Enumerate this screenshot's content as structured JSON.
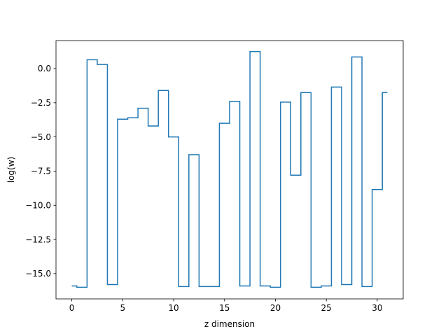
{
  "chart_data": {
    "type": "line",
    "drawstyle": "steps-mid",
    "xlabel": "z dimension",
    "ylabel": "log(w)",
    "xlim": [
      -1.55,
      32.55
    ],
    "ylim": [
      -16.85,
      2.05
    ],
    "grid": false,
    "xticks": [
      0,
      5,
      10,
      15,
      20,
      25,
      30
    ],
    "xtick_labels": [
      "0",
      "5",
      "10",
      "15",
      "20",
      "25",
      "30"
    ],
    "yticks": [
      0.0,
      -2.5,
      -5.0,
      -7.5,
      -10.0,
      -12.5,
      -15.0
    ],
    "ytick_labels": [
      "0.0",
      "−2.5",
      "−5.0",
      "−7.5",
      "−10.0",
      "−12.5",
      "−15.0"
    ],
    "series": [
      {
        "color": "#1f77b4",
        "x": [
          0,
          1,
          2,
          3,
          4,
          5,
          6,
          7,
          8,
          9,
          10,
          11,
          12,
          13,
          14,
          15,
          16,
          17,
          18,
          19,
          20,
          21,
          22,
          23,
          24,
          25,
          26,
          27,
          28,
          29,
          30,
          31
        ],
        "y": [
          -15.9,
          -16.0,
          0.65,
          0.3,
          -15.8,
          -3.7,
          -3.6,
          -2.9,
          -4.2,
          -1.6,
          -5.0,
          -15.95,
          -6.3,
          -15.95,
          -15.95,
          -4.0,
          -2.4,
          -15.9,
          1.25,
          -15.9,
          -16.0,
          -2.45,
          -7.8,
          -1.75,
          -16.0,
          -15.9,
          -1.35,
          -15.8,
          0.85,
          -15.95,
          -8.85,
          -1.75
        ]
      }
    ]
  }
}
